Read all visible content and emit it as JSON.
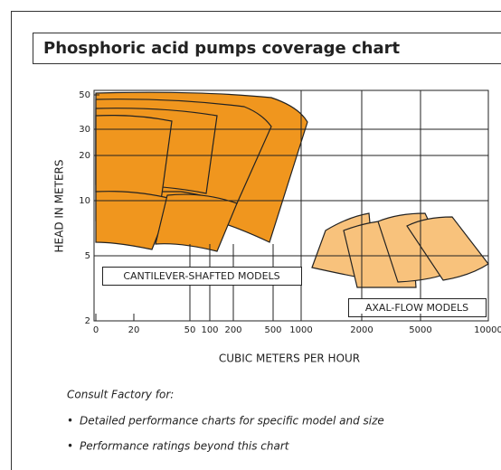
{
  "header": {
    "title": "Phosphoric acid pumps coverage chart"
  },
  "chart": {
    "y_axis_label": "HEAD IN METERS",
    "x_axis_label": "CUBIC METERS PER HOUR",
    "yticks": [
      "50",
      "30",
      "20",
      "10",
      "5",
      "2"
    ],
    "xticks": [
      "0",
      "20",
      "50",
      "100",
      "200",
      "500",
      "1000",
      "2000",
      "5000",
      "10000"
    ],
    "regions": [
      "CANTILEVER-SHAFTED MODELS",
      "AXAL-FLOW MODELS"
    ]
  },
  "notes": {
    "heading": "Consult Factory for:",
    "items": [
      "Detailed performance charts for specific model and size",
      "Performance ratings beyond this chart"
    ]
  }
}
